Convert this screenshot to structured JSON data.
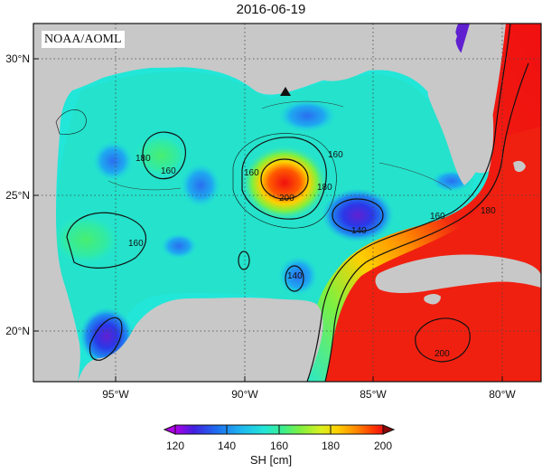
{
  "title": "2016-06-19",
  "credit": "NOAA/AOML",
  "map": {
    "lon_ticks": [
      "95°W",
      "90°W",
      "85°W",
      "80°W"
    ],
    "lat_ticks": [
      "30°N",
      "25°N",
      "20°N"
    ],
    "contour_labels": [
      "160",
      "160",
      "160",
      "180",
      "160",
      "200",
      "180",
      "140",
      "160",
      "180",
      "140",
      "200"
    ],
    "marker": "triangle-marker"
  },
  "colorbar": {
    "title": "SH [cm]",
    "ticks": [
      "120",
      "140",
      "160",
      "180",
      "200"
    ],
    "colors": [
      "#b000e8",
      "#4020e0",
      "#1e6ef0",
      "#1eb8f0",
      "#22e6d8",
      "#3cee8a",
      "#7ef040",
      "#d8f020",
      "#ffd000",
      "#ff8a00",
      "#ff3a00",
      "#f01010"
    ]
  },
  "colors": {
    "land": "#c8c8c8",
    "warm": "#f02010",
    "cool": "#2860e8",
    "mid": "#20e0d0"
  }
}
